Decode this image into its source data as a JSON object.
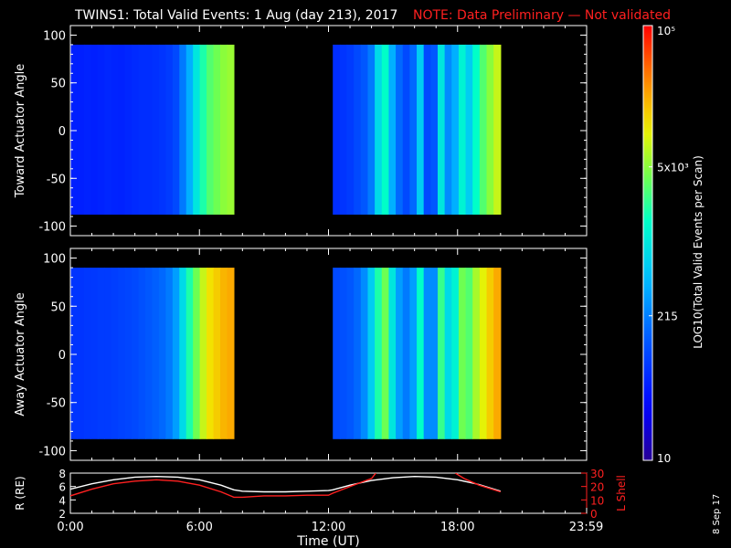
{
  "header": {
    "title": "TWINS1: Total Valid Events:  1 Aug (day 213), 2017",
    "note": "NOTE: Data Preliminary — Not validated"
  },
  "colors": {
    "background": "#000000",
    "axes": "#ffffff",
    "note": "#ff2020",
    "lshell": "#ff2020",
    "radius": "#ffffff"
  },
  "colorbar": {
    "label": "LOG10(Total Valid Events per Scan)",
    "ticks": [
      "10",
      "215",
      "5x10³",
      "10⁵"
    ],
    "tick_values": [
      1,
      2.33,
      3.7,
      5
    ]
  },
  "chart_data": [
    {
      "type": "heatmap",
      "ylabel": "Toward Actuator Angle",
      "ylim": [
        -110,
        110
      ],
      "yticks": [
        "100",
        "50",
        "0",
        "-50",
        "-100"
      ],
      "ytick_values": [
        100,
        50,
        0,
        -50,
        -100
      ],
      "xlim": [
        0,
        24
      ],
      "angle_range": [
        -88,
        90
      ],
      "segments": [
        {
          "x_start": 0.0,
          "x_end": 7.6,
          "columns_log": [
            1.7,
            1.7,
            1.72,
            1.7,
            1.72,
            1.75,
            1.73,
            1.72,
            1.75,
            1.78,
            1.8,
            1.8,
            1.82,
            1.85,
            1.9,
            2.0,
            2.3,
            2.6,
            3.0,
            3.3,
            3.5,
            3.6,
            3.7,
            3.75
          ]
        },
        {
          "x_start": 12.2,
          "x_end": 20.0,
          "columns_log": [
            1.8,
            1.85,
            1.9,
            2.0,
            2.1,
            2.3,
            2.9,
            3.2,
            2.6,
            2.2,
            2.0,
            2.2,
            2.8,
            2.0,
            2.1,
            3.0,
            2.4,
            2.6,
            3.1,
            2.8,
            3.2,
            3.5,
            3.7,
            3.9
          ]
        }
      ]
    },
    {
      "type": "heatmap",
      "ylabel": "Away Actuator Angle",
      "ylim": [
        -110,
        110
      ],
      "yticks": [
        "100",
        "50",
        "0",
        "-50",
        "-100"
      ],
      "ytick_values": [
        100,
        50,
        0,
        -50,
        -100
      ],
      "xlim": [
        0,
        24
      ],
      "angle_range": [
        -88,
        90
      ],
      "segments": [
        {
          "x_start": 0.0,
          "x_end": 7.6,
          "columns_log": [
            1.85,
            1.85,
            1.87,
            1.88,
            1.9,
            1.9,
            1.92,
            1.95,
            1.97,
            2.0,
            2.05,
            2.1,
            2.15,
            2.2,
            2.3,
            2.5,
            2.9,
            3.3,
            3.6,
            3.9,
            4.1,
            4.2,
            4.3,
            4.35
          ]
        },
        {
          "x_start": 12.2,
          "x_end": 20.0,
          "columns_log": [
            2.0,
            2.05,
            2.1,
            2.2,
            2.4,
            2.8,
            3.3,
            3.6,
            3.0,
            2.5,
            2.3,
            2.5,
            3.2,
            2.4,
            2.4,
            3.4,
            2.9,
            3.1,
            3.6,
            3.5,
            3.8,
            4.0,
            4.2,
            4.35
          ]
        }
      ]
    },
    {
      "type": "line",
      "xlabel": "Time (UT)",
      "xticks": [
        "0:00",
        "6:00",
        "12:00",
        "18:00",
        "23:59"
      ],
      "xtick_values": [
        0,
        6,
        12,
        18,
        23.98
      ],
      "xlim": [
        0,
        24
      ],
      "left_axis": {
        "label": "R (RE)",
        "ylim": [
          2,
          8
        ],
        "ticks": [
          "8",
          "6",
          "4",
          "2"
        ],
        "tick_values": [
          8,
          6,
          4,
          2
        ]
      },
      "right_axis": {
        "label": "L Shell",
        "ylim": [
          0,
          30
        ],
        "ticks": [
          "30",
          "20",
          "10",
          "0"
        ],
        "tick_values": [
          30,
          20,
          10,
          0
        ]
      },
      "series": [
        {
          "axis": "left",
          "color": "#ffffff",
          "x": [
            0,
            1,
            2,
            3,
            4,
            5,
            6,
            7,
            7.6,
            8,
            9,
            10,
            11,
            12,
            12.2,
            13,
            14,
            15,
            16,
            17,
            18,
            19,
            20
          ],
          "y": [
            5.6,
            6.4,
            7.0,
            7.4,
            7.5,
            7.4,
            7.0,
            6.2,
            5.5,
            5.3,
            5.2,
            5.2,
            5.3,
            5.4,
            5.5,
            6.2,
            6.9,
            7.3,
            7.5,
            7.4,
            7.0,
            6.3,
            5.3
          ]
        },
        {
          "axis": "right",
          "color": "#ff2020",
          "x": [
            0,
            1,
            2,
            3,
            4,
            5,
            6,
            7,
            7.6,
            8,
            9,
            10,
            11,
            12,
            12.2,
            13,
            14,
            14.2
          ],
          "y": [
            13,
            18,
            22,
            24,
            25,
            24,
            21,
            16,
            12,
            12,
            13,
            13,
            13.5,
            13.5,
            15,
            20,
            26,
            30
          ]
        },
        {
          "axis": "right",
          "color": "#ff2020",
          "x": [
            17.9,
            18.3,
            19,
            20
          ],
          "y": [
            30,
            26,
            21,
            16
          ]
        }
      ]
    }
  ],
  "footer": {
    "date_stamp": "8 Sep 17"
  }
}
